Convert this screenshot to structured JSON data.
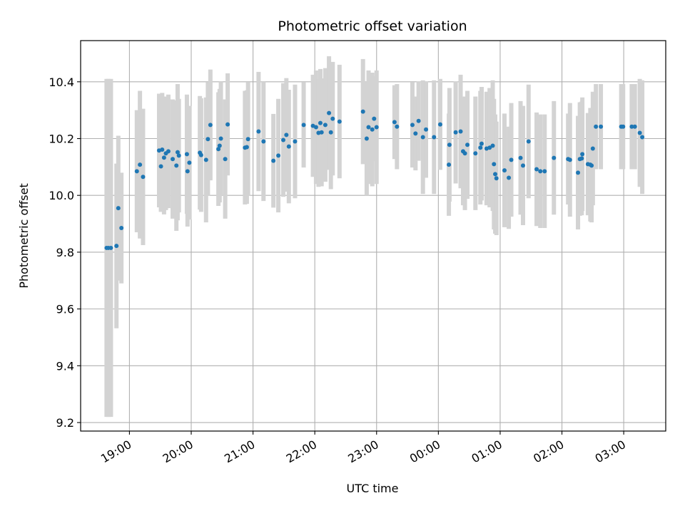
{
  "chart_data": {
    "type": "scatter",
    "title": "Photometric offset variation",
    "xlabel": "UTC time",
    "ylabel": "Photometric offset",
    "x_unit": "hours (UTC), values past midnight continue beyond 24",
    "xlim": [
      18.21,
      27.68
    ],
    "ylim": [
      9.17,
      10.545
    ],
    "yticks": [
      9.2,
      9.4,
      9.6,
      9.8,
      10.0,
      10.2,
      10.4
    ],
    "xticks": [
      {
        "value": 19,
        "label": "19:00"
      },
      {
        "value": 20,
        "label": "20:00"
      },
      {
        "value": 21,
        "label": "21:00"
      },
      {
        "value": 22,
        "label": "22:00"
      },
      {
        "value": 23,
        "label": "23:00"
      },
      {
        "value": 24,
        "label": "00:00"
      },
      {
        "value": 25,
        "label": "01:00"
      },
      {
        "value": 26,
        "label": "02:00"
      },
      {
        "value": 27,
        "label": "03:00"
      }
    ],
    "grid": true,
    "marker_color": "#1f77b4",
    "errorbar_color": "#d3d3d3",
    "points": [
      [
        18.63,
        9.815,
        0.595
      ],
      [
        18.66,
        9.815,
        0.595
      ],
      [
        18.7,
        9.815,
        0.595
      ],
      [
        18.79,
        9.822,
        0.29
      ],
      [
        18.82,
        9.955,
        0.255
      ],
      [
        18.87,
        9.885,
        0.195
      ],
      [
        19.12,
        10.085,
        0.215
      ],
      [
        19.17,
        10.108,
        0.26
      ],
      [
        19.22,
        10.065,
        0.24
      ],
      [
        19.48,
        10.158,
        0.2
      ],
      [
        19.51,
        10.102,
        0.16
      ],
      [
        19.53,
        10.161,
        0.2
      ],
      [
        19.56,
        10.133,
        0.2
      ],
      [
        19.59,
        10.148,
        0.2
      ],
      [
        19.63,
        10.155,
        0.2
      ],
      [
        19.7,
        10.128,
        0.21
      ],
      [
        19.76,
        10.105,
        0.23
      ],
      [
        19.78,
        10.152,
        0.24
      ],
      [
        19.8,
        10.14,
        0.2
      ],
      [
        19.94,
        10.085,
        0.195
      ],
      [
        19.97,
        10.115,
        0.2
      ],
      [
        19.93,
        10.145,
        0.21
      ],
      [
        20.14,
        10.15,
        0.2
      ],
      [
        20.16,
        10.142,
        0.2
      ],
      [
        20.24,
        10.125,
        0.22
      ],
      [
        20.27,
        10.198,
        0.2
      ],
      [
        20.31,
        10.248,
        0.195
      ],
      [
        20.44,
        10.163,
        0.2
      ],
      [
        20.46,
        10.175,
        0.2
      ],
      [
        20.48,
        10.2,
        0.2
      ],
      [
        20.55,
        10.128,
        0.21
      ],
      [
        20.59,
        10.25,
        0.18
      ],
      [
        20.87,
        10.168,
        0.2
      ],
      [
        20.9,
        10.17,
        0.2
      ],
      [
        20.92,
        10.198,
        0.2
      ],
      [
        21.09,
        10.225,
        0.21
      ],
      [
        21.17,
        10.19,
        0.21
      ],
      [
        21.33,
        10.122,
        0.165
      ],
      [
        21.41,
        10.14,
        0.2
      ],
      [
        21.49,
        10.195,
        0.2
      ],
      [
        21.54,
        10.213,
        0.2
      ],
      [
        21.58,
        10.172,
        0.2
      ],
      [
        21.68,
        10.19,
        0.2
      ],
      [
        21.82,
        10.248,
        0.15
      ],
      [
        21.97,
        10.245,
        0.18
      ],
      [
        22.02,
        10.24,
        0.2
      ],
      [
        22.06,
        10.22,
        0.19
      ],
      [
        22.09,
        10.255,
        0.19
      ],
      [
        22.11,
        10.222,
        0.19
      ],
      [
        22.17,
        10.248,
        0.2
      ],
      [
        22.23,
        10.29,
        0.2
      ],
      [
        22.26,
        10.222,
        0.2
      ],
      [
        22.29,
        10.27,
        0.2
      ],
      [
        22.4,
        10.26,
        0.2
      ],
      [
        22.78,
        10.295,
        0.185
      ],
      [
        22.84,
        10.2,
        0.2
      ],
      [
        22.87,
        10.24,
        0.2
      ],
      [
        22.93,
        10.232,
        0.2
      ],
      [
        22.96,
        10.27,
        0.15
      ],
      [
        23.0,
        10.24,
        0.2
      ],
      [
        23.29,
        10.258,
        0.13
      ],
      [
        23.33,
        10.242,
        0.15
      ],
      [
        23.58,
        10.248,
        0.15
      ],
      [
        23.63,
        10.218,
        0.13
      ],
      [
        23.68,
        10.262,
        0.14
      ],
      [
        23.75,
        10.205,
        0.2
      ],
      [
        23.8,
        10.232,
        0.17
      ],
      [
        23.93,
        10.205,
        0.2
      ],
      [
        24.03,
        10.25,
        0.16
      ],
      [
        24.17,
        10.108,
        0.18
      ],
      [
        24.18,
        10.178,
        0.2
      ],
      [
        24.28,
        10.222,
        0.18
      ],
      [
        24.36,
        10.225,
        0.2
      ],
      [
        24.4,
        10.155,
        0.19
      ],
      [
        24.43,
        10.148,
        0.2
      ],
      [
        24.47,
        10.178,
        0.19
      ],
      [
        24.6,
        10.148,
        0.2
      ],
      [
        24.68,
        10.168,
        0.2
      ],
      [
        24.7,
        10.182,
        0.2
      ],
      [
        24.78,
        10.165,
        0.2
      ],
      [
        24.83,
        10.168,
        0.21
      ],
      [
        24.88,
        10.175,
        0.23
      ],
      [
        24.9,
        10.11,
        0.23
      ],
      [
        24.92,
        10.075,
        0.21
      ],
      [
        24.94,
        10.06,
        0.2
      ],
      [
        25.07,
        10.088,
        0.2
      ],
      [
        25.14,
        10.062,
        0.18
      ],
      [
        25.18,
        10.125,
        0.2
      ],
      [
        25.33,
        10.132,
        0.2
      ],
      [
        25.37,
        10.105,
        0.21
      ],
      [
        25.46,
        10.19,
        0.2
      ],
      [
        25.59,
        10.092,
        0.2
      ],
      [
        25.65,
        10.085,
        0.2
      ],
      [
        25.72,
        10.085,
        0.2
      ],
      [
        25.87,
        10.132,
        0.2
      ],
      [
        26.1,
        10.128,
        0.16
      ],
      [
        26.13,
        10.125,
        0.2
      ],
      [
        26.26,
        10.08,
        0.2
      ],
      [
        26.29,
        10.128,
        0.2
      ],
      [
        26.32,
        10.13,
        0.2
      ],
      [
        26.33,
        10.145,
        0.2
      ],
      [
        26.42,
        10.11,
        0.18
      ],
      [
        26.46,
        10.108,
        0.2
      ],
      [
        26.48,
        10.105,
        0.2
      ],
      [
        26.5,
        10.165,
        0.2
      ],
      [
        26.55,
        10.242,
        0.15
      ],
      [
        26.63,
        10.242,
        0.15
      ],
      [
        26.96,
        10.242,
        0.15
      ],
      [
        26.99,
        10.242,
        0.15
      ],
      [
        27.13,
        10.242,
        0.15
      ],
      [
        27.18,
        10.242,
        0.15
      ],
      [
        27.26,
        10.22,
        0.19
      ],
      [
        27.3,
        10.205,
        0.2
      ]
    ]
  }
}
